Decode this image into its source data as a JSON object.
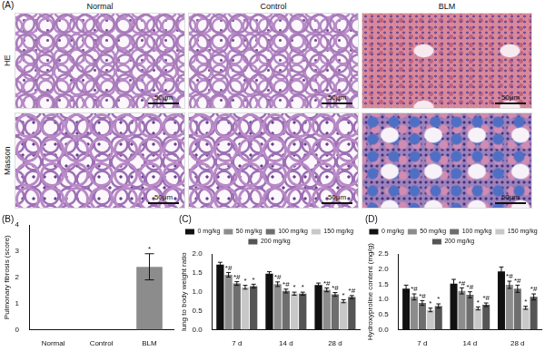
{
  "panel_a": {
    "label": "(A)",
    "columns": [
      "Normal",
      "Control",
      "BLM"
    ],
    "rows": [
      "HE",
      "Masson"
    ],
    "scale_bar": "50μm"
  },
  "chart_data": [
    {
      "type": "bar",
      "title": "(B)",
      "y_label": "Pulmonary fibrosis (score)",
      "categories": [
        "Normal",
        "Control",
        "BLM"
      ],
      "values": [
        0,
        0,
        2.4
      ],
      "errors": [
        0,
        0,
        0.5
      ],
      "significance": [
        null,
        null,
        "*"
      ],
      "color": "#8c8c8c",
      "ylim": [
        0,
        4
      ],
      "yticks": [
        0,
        1,
        2,
        3,
        4
      ],
      "grid": false
    },
    {
      "type": "bar",
      "title": "(C)",
      "y_label": "lung to body weight ratio",
      "categories": [
        "7 d",
        "14 d",
        "28 d"
      ],
      "series": [
        {
          "name": "0 mg/kg",
          "color": "#111111",
          "values": [
            1.72,
            1.48,
            1.18
          ],
          "errors": [
            0.06,
            0.05,
            0.05
          ],
          "significance": [
            null,
            null,
            null
          ]
        },
        {
          "name": "50 mg/kg",
          "color": "#8c8c8c",
          "values": [
            1.45,
            1.2,
            1.05
          ],
          "errors": [
            0.06,
            0.06,
            0.05
          ],
          "significance": [
            "*#",
            "*#",
            "*#"
          ]
        },
        {
          "name": "100 mg/kg",
          "color": "#6e6e6e",
          "values": [
            1.22,
            1.02,
            0.93
          ],
          "errors": [
            0.05,
            0.05,
            0.05
          ],
          "significance": [
            "*#",
            "*#",
            "*#"
          ]
        },
        {
          "name": "150 mg/kg",
          "color": "#c8c8c8",
          "values": [
            1.12,
            0.95,
            0.75
          ],
          "errors": [
            0.05,
            0.04,
            0.04
          ],
          "significance": [
            "*",
            "*",
            "*"
          ]
        },
        {
          "name": "200 mg/kg",
          "color": "#555555",
          "values": [
            1.15,
            0.95,
            0.86
          ],
          "errors": [
            0.05,
            0.04,
            0.04
          ],
          "significance": [
            "*",
            "*",
            "*#"
          ]
        }
      ],
      "ylim": [
        0,
        2
      ],
      "yticks": [
        {
          "value": 0,
          "label": "0.0"
        },
        {
          "value": 0.5,
          "label": "0.5"
        },
        {
          "value": 1,
          "label": "1.0"
        },
        {
          "value": 1.5,
          "label": "1.5"
        },
        {
          "value": 2,
          "label": "2.0"
        }
      ],
      "legend": "top",
      "grid": false
    },
    {
      "type": "bar",
      "title": "(D)",
      "y_label": "Hydroxyproline content (mg/g)",
      "categories": [
        "7 d",
        "14 d",
        "28 d"
      ],
      "series": [
        {
          "name": "0 mg/kg",
          "color": "#111111",
          "values": [
            1.35,
            1.52,
            1.92
          ],
          "errors": [
            0.12,
            0.14,
            0.15
          ],
          "significance": [
            null,
            null,
            null
          ]
        },
        {
          "name": "50 mg/kg",
          "color": "#8c8c8c",
          "values": [
            1.08,
            1.28,
            1.48
          ],
          "errors": [
            0.1,
            0.1,
            0.12
          ],
          "significance": [
            "*#",
            "*#",
            "*#"
          ]
        },
        {
          "name": "100 mg/kg",
          "color": "#6e6e6e",
          "values": [
            0.88,
            1.15,
            1.35
          ],
          "errors": [
            0.08,
            0.1,
            0.12
          ],
          "significance": [
            "*#",
            "*#",
            "*#"
          ]
        },
        {
          "name": "150 mg/kg",
          "color": "#c8c8c8",
          "values": [
            0.65,
            0.7,
            0.72
          ],
          "errors": [
            0.06,
            0.05,
            0.05
          ],
          "significance": [
            "*",
            "*",
            "*"
          ]
        },
        {
          "name": "200 mg/kg",
          "color": "#555555",
          "values": [
            0.78,
            0.82,
            1.08
          ],
          "errors": [
            0.07,
            0.06,
            0.1
          ],
          "significance": [
            "*",
            "*#",
            "*#"
          ]
        }
      ],
      "ylim": [
        0,
        2.5
      ],
      "yticks": [
        {
          "value": 0,
          "label": "0.0"
        },
        {
          "value": 0.5,
          "label": "0.5"
        },
        {
          "value": 1,
          "label": "1.0"
        },
        {
          "value": 1.5,
          "label": "1.5"
        },
        {
          "value": 2,
          "label": "2.0"
        },
        {
          "value": 2.5,
          "label": "2.5"
        }
      ],
      "legend": "top",
      "grid": false
    }
  ]
}
